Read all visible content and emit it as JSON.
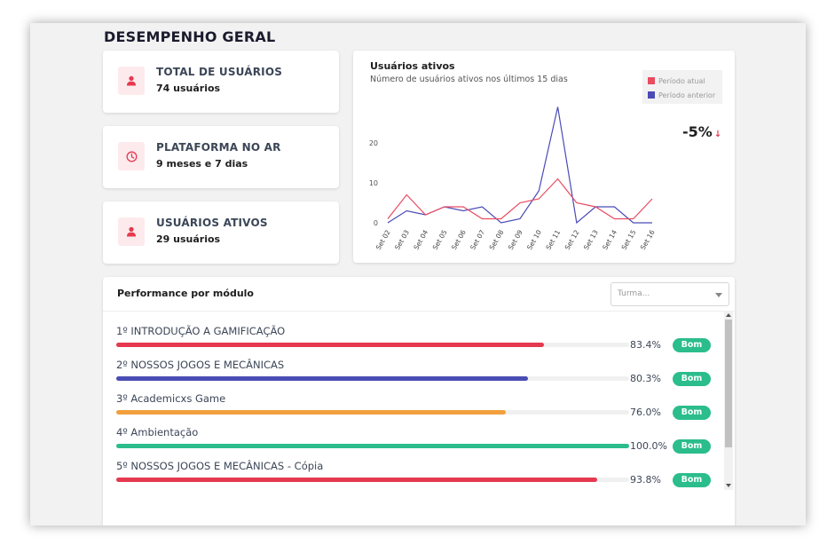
{
  "page": {
    "title": "DESEMPENHO GERAL"
  },
  "stats": [
    {
      "label": "TOTAL DE USUÁRIOS",
      "value": "74 usuários",
      "icon": "user-icon"
    },
    {
      "label": "PLATAFORMA NO AR",
      "value": "9 meses e 7 dias",
      "icon": "clock-icon"
    },
    {
      "label": "USUÁRIOS ATIVOS",
      "value": "29 usuários",
      "icon": "user-icon"
    }
  ],
  "active_users": {
    "title": "Usuários ativos",
    "subtitle": "Número de usuários ativos nos últimos 15 dias",
    "delta": "-5%",
    "delta_arrow": "↓"
  },
  "chart_data": {
    "type": "line",
    "x": [
      "Set 02",
      "Set 03",
      "Set 04",
      "Set 05",
      "Set 06",
      "Set 07",
      "Set 08",
      "Set 09",
      "Set 10",
      "Set 11",
      "Set 12",
      "Set 13",
      "Set 14",
      "Set 15",
      "Set 16"
    ],
    "series": [
      {
        "name": "Período atual",
        "color": "#e94b5f",
        "values": [
          1,
          7,
          2,
          4,
          4,
          1,
          1,
          5,
          6,
          11,
          5,
          4,
          1,
          1,
          6
        ]
      },
      {
        "name": "Período anterior",
        "color": "#4b4bb6",
        "values": [
          0,
          3,
          2,
          4,
          3,
          4,
          0,
          1,
          8,
          29,
          0,
          4,
          4,
          0,
          0
        ]
      }
    ],
    "ylim": [
      0,
      30
    ],
    "yticks": [
      0,
      10,
      20
    ],
    "grid": false,
    "legend": "top-right"
  },
  "performance": {
    "title": "Performance por módulo",
    "select_placeholder": "Turma...",
    "modules": [
      {
        "label": "1º INTRODUÇÃO A GAMIFICAÇÃO",
        "percent": 83.4,
        "percent_label": "83.4%",
        "status": "Bom",
        "color": "#e5394f"
      },
      {
        "label": "2º NOSSOS JOGOS E MECÂNICAS",
        "percent": 80.3,
        "percent_label": "80.3%",
        "status": "Bom",
        "color": "#4a4db4"
      },
      {
        "label": "3º Academicxs Game",
        "percent": 76.0,
        "percent_label": "76.0%",
        "status": "Bom",
        "color": "#f2a03d"
      },
      {
        "label": "4º Ambientação",
        "percent": 100.0,
        "percent_label": "100.0%",
        "status": "Bom",
        "color": "#2bbd8c"
      },
      {
        "label": "5º NOSSOS JOGOS E MECÂNICAS - Cópia",
        "percent": 93.8,
        "percent_label": "93.8%",
        "status": "Bom",
        "color": "#e5394f"
      }
    ]
  },
  "colors": {
    "accent_pink_bg": "#fdeaed",
    "accent_red": "#e5394f",
    "badge_green": "#2bbd8c"
  }
}
